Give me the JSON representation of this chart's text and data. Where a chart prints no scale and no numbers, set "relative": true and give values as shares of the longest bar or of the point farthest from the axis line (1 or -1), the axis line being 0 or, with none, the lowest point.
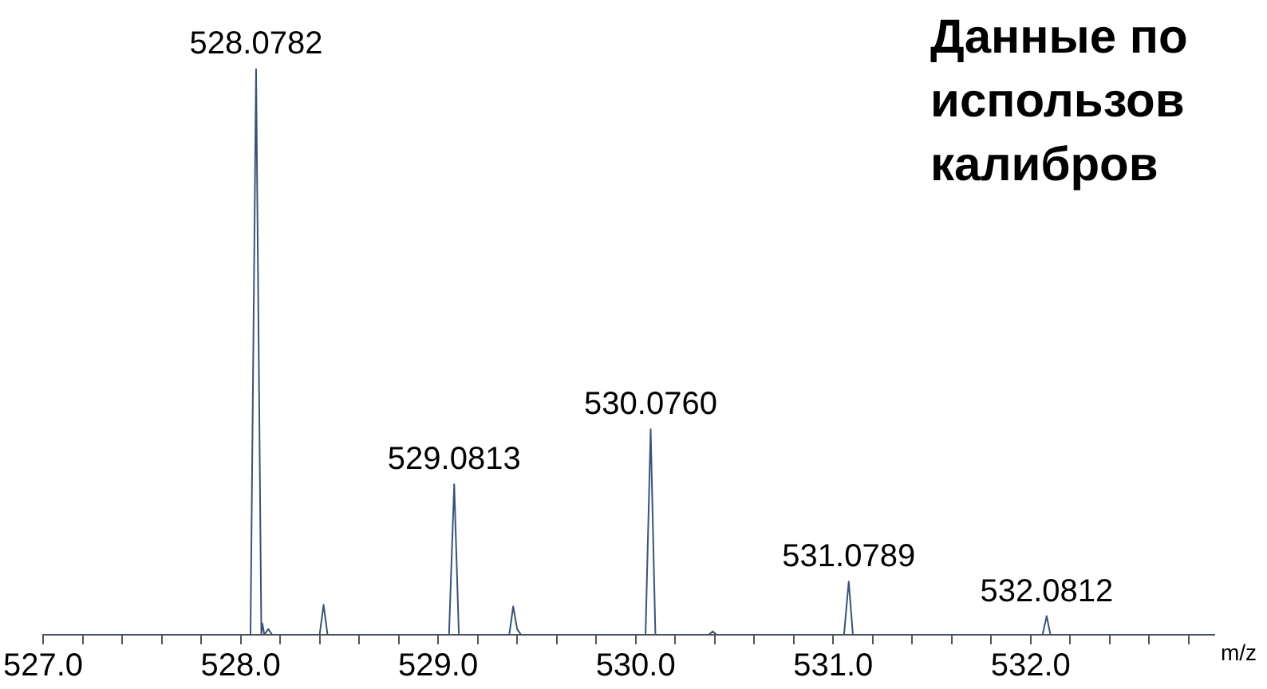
{
  "chart_data": {
    "type": "line",
    "title": "Данные по\nиспользов\nкалибров",
    "xlabel": "m/z",
    "relative": true,
    "marker": "none",
    "color": "#3b5278",
    "x": [
      527.0,
      528.05,
      528.0782,
      528.105,
      528.11,
      528.12,
      528.14,
      528.16,
      528.4,
      528.42,
      528.44,
      529.055,
      529.0813,
      529.105,
      529.36,
      529.38,
      529.4,
      529.42,
      530.05,
      530.076,
      530.1,
      530.37,
      530.39,
      530.41,
      531.055,
      531.0789,
      531.1,
      532.06,
      532.0812,
      532.1,
      532.93
    ],
    "values": [
      0,
      0,
      1,
      0,
      0.02,
      0,
      0.01,
      0,
      0,
      0.053,
      0,
      0,
      0.266,
      0,
      0,
      0.05,
      0.01,
      0,
      0,
      0.363,
      0,
      0,
      0.006,
      0,
      0,
      0.094,
      0,
      0,
      0.033,
      0,
      0
    ],
    "xlim": [
      527.0,
      532.93
    ],
    "xticks": [
      {
        "value": 527,
        "label": "527.0"
      },
      {
        "value": 527.2,
        "label": null
      },
      {
        "value": 527.4,
        "label": null
      },
      {
        "value": 527.6,
        "label": null
      },
      {
        "value": 527.8,
        "label": null
      },
      {
        "value": 528,
        "label": "528.0"
      },
      {
        "value": 528.2,
        "label": null
      },
      {
        "value": 528.4,
        "label": null
      },
      {
        "value": 528.6,
        "label": null
      },
      {
        "value": 528.8,
        "label": null
      },
      {
        "value": 529,
        "label": "529.0"
      },
      {
        "value": 529.2,
        "label": null
      },
      {
        "value": 529.4,
        "label": null
      },
      {
        "value": 529.6,
        "label": null
      },
      {
        "value": 529.8,
        "label": null
      },
      {
        "value": 530,
        "label": "530.0"
      },
      {
        "value": 530.2,
        "label": null
      },
      {
        "value": 530.4,
        "label": null
      },
      {
        "value": 530.6,
        "label": null
      },
      {
        "value": 530.8,
        "label": null
      },
      {
        "value": 531,
        "label": "531.0"
      },
      {
        "value": 531.2,
        "label": null
      },
      {
        "value": 531.4,
        "label": null
      },
      {
        "value": 531.6,
        "label": null
      },
      {
        "value": 531.8,
        "label": null
      },
      {
        "value": 532,
        "label": "532.0"
      },
      {
        "value": 532.2,
        "label": null
      },
      {
        "value": 532.4,
        "label": null
      },
      {
        "value": 532.6,
        "label": null
      },
      {
        "value": 532.8,
        "label": null
      }
    ],
    "annotations": [
      {
        "text": "528.0782",
        "x": 528.0782,
        "y": 1
      },
      {
        "text": "529.0813",
        "x": 529.0813,
        "y": 0.266
      },
      {
        "text": "530.0760",
        "x": 530.076,
        "y": 0.363
      },
      {
        "text": "531.0789",
        "x": 531.0789,
        "y": 0.094
      },
      {
        "text": "532.0812",
        "x": 532.0812,
        "y": 0.033
      }
    ]
  }
}
